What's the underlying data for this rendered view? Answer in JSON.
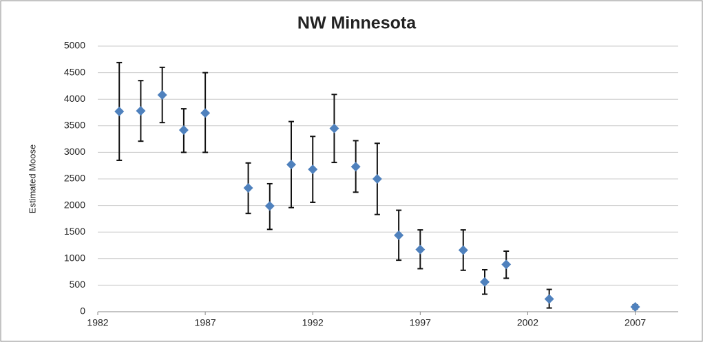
{
  "chart_data": {
    "type": "scatter",
    "title": "NW Minnesota",
    "y_label": "Estimated Moose",
    "series": [
      {
        "name": "Estimated Moose",
        "color": "#4f81bd",
        "error_color": "#111111",
        "x": [
          1983,
          1984,
          1985,
          1986,
          1987,
          1989,
          1990,
          1991,
          1992,
          1993,
          1994,
          1995,
          1996,
          1997,
          1999,
          2000,
          2001,
          2003,
          2007
        ],
        "values": [
          3770,
          3780,
          4080,
          3420,
          3740,
          2330,
          1990,
          2770,
          2680,
          3450,
          2730,
          2500,
          1440,
          1170,
          1160,
          560,
          890,
          240,
          90
        ],
        "upper": [
          4690,
          4350,
          4600,
          3820,
          4500,
          2800,
          2410,
          3580,
          3300,
          4090,
          3220,
          3170,
          1910,
          1540,
          1540,
          790,
          1140,
          420,
          130
        ],
        "lower": [
          2850,
          3210,
          3560,
          3000,
          3000,
          1850,
          1550,
          1960,
          2060,
          2810,
          2250,
          1830,
          970,
          810,
          780,
          330,
          630,
          70,
          50
        ]
      }
    ],
    "xlim": [
      1982,
      2009
    ],
    "xticks": [
      1982,
      1987,
      1992,
      1997,
      2002,
      2007
    ],
    "ylim": [
      0,
      5000
    ],
    "yticks": [
      0,
      500,
      1000,
      1500,
      2000,
      2500,
      3000,
      3500,
      4000,
      4500,
      5000
    ],
    "grid": true
  }
}
